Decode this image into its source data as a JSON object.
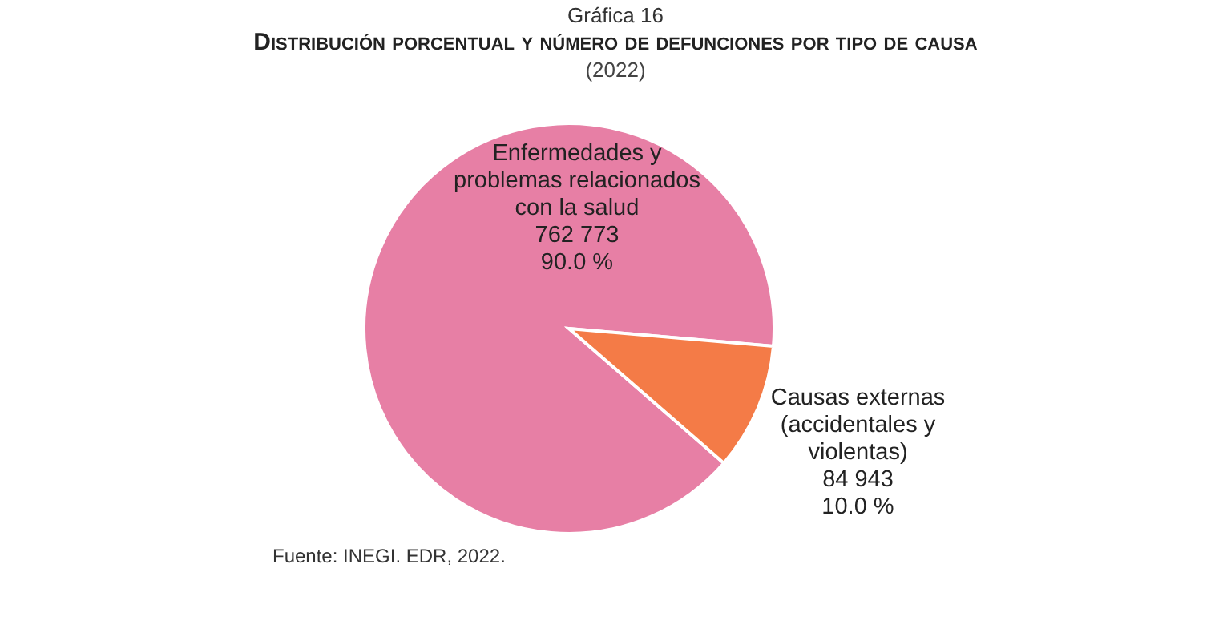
{
  "chart_data": {
    "type": "pie",
    "title": "Distribución porcentual y número de defunciones por tipo de causa",
    "subtitle": "(2022)",
    "categories": [
      "Enfermedades y problemas relacionados con la salud",
      "Causas externas (accidentales y violentas)"
    ],
    "values": [
      762773,
      84943
    ],
    "value_labels": [
      "762 773\n90.0 %",
      "84 943\n10.0 %"
    ],
    "colors": [
      "#e77fa5",
      "#f47b47"
    ],
    "legend": false,
    "annotations": [
      "Gráfica 16",
      "Fuente: INEGI. EDR, 2022."
    ]
  }
}
